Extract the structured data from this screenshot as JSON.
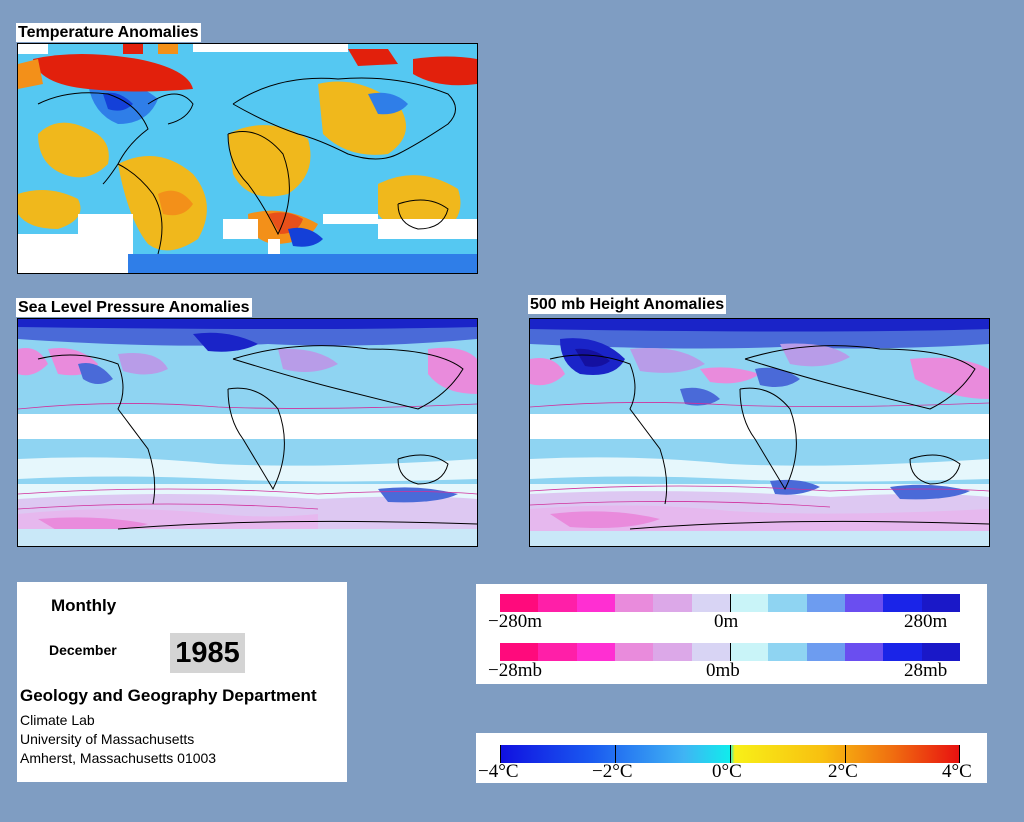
{
  "maps": {
    "temperature": {
      "title": "Temperature Anomalies"
    },
    "slp": {
      "title": "Sea Level Pressure Anomalies"
    },
    "height": {
      "title": "500 mb Height Anomalies"
    }
  },
  "info": {
    "period": "Monthly",
    "month": "December",
    "year": "1985",
    "department": "Geology and Geography Department",
    "lab": "Climate Lab",
    "university": "University of Massachusetts",
    "address": "Amherst, Massachusetts 01003"
  },
  "legends": {
    "height": {
      "min": "−280m",
      "mid": "0m",
      "max": "280m"
    },
    "pressure": {
      "min": "−28mb",
      "mid": "0mb",
      "max": "28mb"
    },
    "temperature": {
      "t1": "−4°C",
      "t2": "−2°C",
      "t3": "0°C",
      "t4": "2°C",
      "t5": "4°C"
    }
  },
  "colors": {
    "background": "#7f9dc2",
    "warm": "#f0b81c",
    "hot": "#e2200c",
    "cool": "#55c8f2",
    "cold": "#1440d8",
    "high": "#b89ce8",
    "low": "#4a6ad8"
  }
}
